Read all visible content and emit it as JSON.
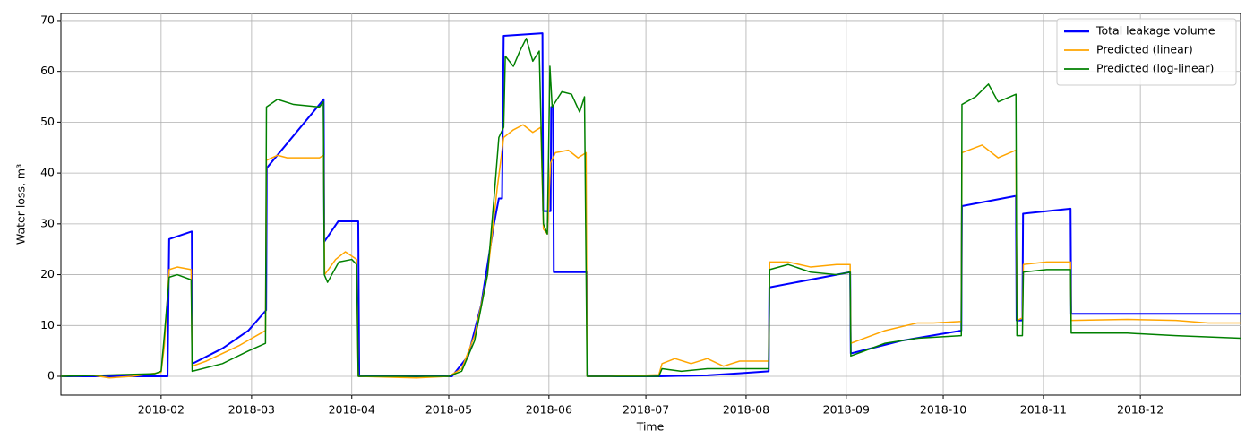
{
  "chart_data": {
    "type": "line",
    "xlabel": "Time",
    "ylabel": "Water loss, m³",
    "xlim": [
      0,
      365
    ],
    "ylim": [
      -3.7,
      71.4
    ],
    "xticks": [
      {
        "value": 31,
        "label": "2018-02"
      },
      {
        "value": 59,
        "label": "2018-03"
      },
      {
        "value": 90,
        "label": "2018-04"
      },
      {
        "value": 120,
        "label": "2018-05"
      },
      {
        "value": 151,
        "label": "2018-06"
      },
      {
        "value": 181,
        "label": "2018-07"
      },
      {
        "value": 212,
        "label": "2018-08"
      },
      {
        "value": 243,
        "label": "2018-09"
      },
      {
        "value": 273,
        "label": "2018-10"
      },
      {
        "value": 304,
        "label": "2018-11"
      },
      {
        "value": 334,
        "label": "2018-12"
      }
    ],
    "yticks": [
      0,
      10,
      20,
      30,
      40,
      50,
      60,
      70
    ],
    "grid": true,
    "legend": "upper right",
    "series": [
      {
        "name": "Total leakage volume",
        "color": "#0000ff",
        "x": [
          0,
          33,
          33.5,
          40.5,
          40.7,
          50,
          58,
          63.5,
          63.7,
          81.3,
          81.5,
          85.8,
          92,
          92.3,
          121,
          126,
          130,
          134,
          135.5,
          136.5,
          137,
          149,
          149.2,
          151.5,
          151.7,
          152.3,
          152.5,
          162.7,
          163,
          185,
          200,
          210,
          219,
          219.2,
          244.2,
          244.4,
          260,
          278.6,
          278.8,
          295.5,
          295.7,
          297.5,
          297.7,
          312.4,
          312.6,
          365
        ],
        "values": [
          0,
          0,
          27,
          28.5,
          2.5,
          5.5,
          9,
          13,
          41,
          54.5,
          26.5,
          30.5,
          30.5,
          0,
          0,
          4,
          14,
          30,
          35,
          35,
          67,
          67.5,
          32.5,
          32.5,
          53,
          53,
          20.5,
          20.5,
          0,
          0,
          0.2,
          0.6,
          1,
          17.5,
          20.5,
          4.5,
          7,
          9,
          33.5,
          35.5,
          11,
          11,
          32,
          33,
          12.3,
          12.3
        ]
      },
      {
        "name": "Predicted (linear)",
        "color": "#ffa500",
        "x": [
          0,
          10,
          15,
          22,
          29,
          31,
          32,
          33.5,
          36,
          40.3,
          40.6,
          45,
          55,
          63.3,
          63.6,
          67,
          70,
          80,
          81.3,
          81.6,
          85,
          88,
          91.5,
          92,
          110,
          120,
          124,
          128,
          132,
          135,
          137,
          140,
          143,
          146,
          148.5,
          149.3,
          150.5,
          151.5,
          153,
          157,
          160,
          162.5,
          162.8,
          170,
          185,
          186,
          190,
          195,
          200,
          205,
          210,
          219,
          219.3,
          225,
          232,
          240,
          244.2,
          244.4,
          255,
          265,
          270,
          278.6,
          278.8,
          285,
          290,
          295.5,
          295.8,
          297.5,
          297.8,
          305,
          312.4,
          312.6,
          330,
          345,
          355,
          365
        ],
        "values": [
          0,
          0.2,
          -0.3,
          0,
          0.6,
          0.8,
          6,
          21,
          21.5,
          21,
          2,
          3,
          6,
          9,
          42.5,
          43.5,
          43,
          43,
          43.5,
          20,
          23,
          24.5,
          23,
          0,
          -0.3,
          0,
          1.5,
          8,
          20,
          37,
          47,
          48.5,
          49.5,
          48,
          49,
          29,
          28,
          42,
          44,
          44.5,
          43,
          44,
          0,
          0,
          0.3,
          2.5,
          3.5,
          2.5,
          3.5,
          2,
          3,
          3,
          22.5,
          22.5,
          21.5,
          22,
          22,
          6.5,
          9,
          10.5,
          10.5,
          10.8,
          44,
          45.5,
          43,
          44.5,
          11,
          11.5,
          22,
          22.5,
          22.5,
          11,
          11.2,
          11,
          10.5,
          10.5
        ]
      },
      {
        "name": "Predicted (log-linear)",
        "color": "#008000",
        "x": [
          0,
          29,
          31,
          32,
          33.5,
          36,
          40.3,
          40.6,
          50,
          58,
          63.3,
          63.6,
          67,
          72,
          80,
          81.2,
          81.5,
          82.5,
          86,
          90,
          91.5,
          92,
          120,
          124,
          128,
          132,
          134,
          135.5,
          137,
          137.5,
          140,
          142,
          144,
          146,
          148,
          149.3,
          150.5,
          151.3,
          152,
          155,
          158,
          160.5,
          162,
          162.8,
          185,
          186,
          192,
          200,
          210,
          219,
          219.3,
          225,
          232,
          240,
          244.2,
          244.4,
          255,
          265,
          278.6,
          278.8,
          283,
          287,
          290,
          295.5,
          295.8,
          297.5,
          297.8,
          305,
          312.4,
          312.6,
          330,
          345,
          365
        ],
        "values": [
          0,
          0.5,
          1,
          8,
          19.5,
          20,
          19,
          1,
          2.5,
          5,
          6.5,
          53,
          54.5,
          53.5,
          53,
          54,
          20,
          18.5,
          22.5,
          23,
          22,
          0,
          0,
          1,
          7,
          20,
          35,
          47,
          49,
          63,
          61,
          64,
          66.5,
          62,
          64,
          30,
          28,
          61,
          53,
          56,
          55.5,
          52,
          55,
          0,
          0,
          1.5,
          1,
          1.5,
          1.5,
          1.5,
          21,
          22,
          20.5,
          20,
          20.5,
          4,
          6.5,
          7.5,
          8,
          53.5,
          55,
          57.5,
          54,
          55.5,
          8,
          8,
          20.5,
          21,
          21,
          8.5,
          8.5,
          8,
          7.5
        ]
      }
    ]
  }
}
